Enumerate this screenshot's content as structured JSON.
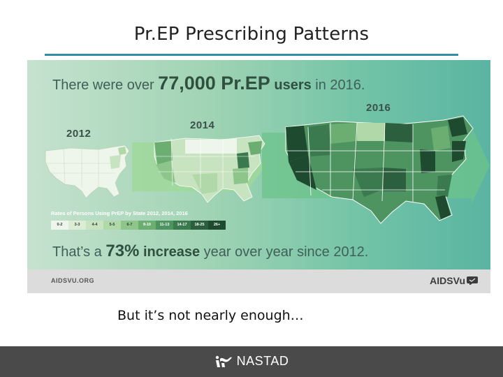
{
  "slide": {
    "title": "Pr.EP Prescribing Patterns",
    "caption": "But it’s not nearly enough…"
  },
  "infographic": {
    "headline": {
      "pre": "There were over ",
      "number": "77,000",
      "brand": " Pr.EP",
      "users": " users",
      "post": " in 2016."
    },
    "years": [
      "2012",
      "2014",
      "2016"
    ],
    "legend": {
      "title": "Rates of Persons Using PrEP by State 2012, 2014, 2016",
      "bins": [
        "0-2",
        "3-3",
        "4-4",
        "5-5",
        "6-7",
        "8-10",
        "11-13",
        "14-17",
        "18-25",
        "26+"
      ],
      "colors": [
        "#eef5ea",
        "#dcedd4",
        "#c8e3bf",
        "#b1d8a8",
        "#8ec58a",
        "#6cae72",
        "#4d9460",
        "#3a7a4e",
        "#2c5f3d",
        "#1e4a30"
      ]
    },
    "subline": {
      "pre": "That’s a ",
      "percent": "73%",
      "increase": " increase",
      "post": " year over year since 2012."
    },
    "footer": {
      "left": "AIDSVU.ORG",
      "right": "AIDSVu"
    }
  },
  "bottom_bar": {
    "brand": "NASTAD"
  },
  "colors": {
    "title_rule": "#2e8ea8",
    "bottom_bar": "#4a4a4a"
  }
}
